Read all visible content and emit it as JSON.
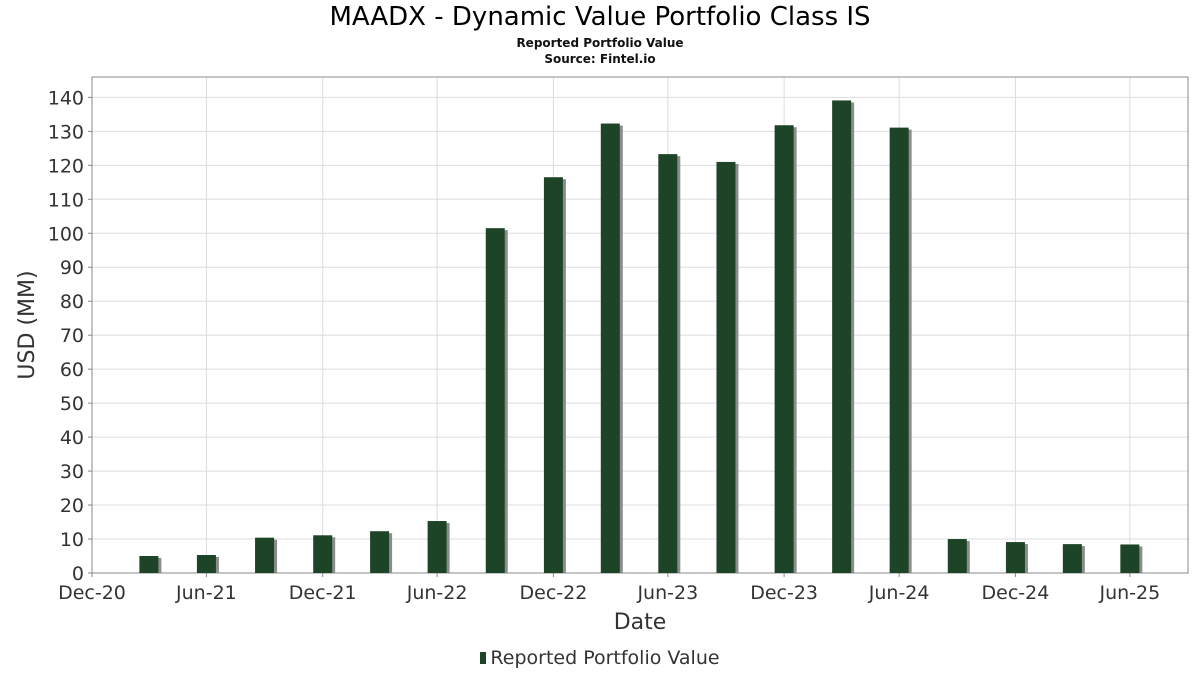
{
  "chart_data": {
    "type": "bar",
    "title": "MAADX - Dynamic Value Portfolio Class IS",
    "subtitle": "Reported Portfolio Value",
    "source": "Source: Fintel.io",
    "xlabel": "Date",
    "ylabel": "USD (MM)",
    "ylim": [
      0,
      146
    ],
    "yticks": [
      0,
      10,
      20,
      30,
      40,
      50,
      60,
      70,
      80,
      90,
      100,
      110,
      120,
      130,
      140
    ],
    "xlim": [
      "2020-12-31",
      "2025-09-30"
    ],
    "xticks": [
      {
        "date": "2020-12-31",
        "label": "Dec-20"
      },
      {
        "date": "2021-06-30",
        "label": "Jun-21"
      },
      {
        "date": "2021-12-31",
        "label": "Dec-21"
      },
      {
        "date": "2022-06-30",
        "label": "Jun-22"
      },
      {
        "date": "2022-12-31",
        "label": "Dec-22"
      },
      {
        "date": "2023-06-30",
        "label": "Jun-23"
      },
      {
        "date": "2023-12-31",
        "label": "Dec-23"
      },
      {
        "date": "2024-06-30",
        "label": "Jun-24"
      },
      {
        "date": "2024-12-31",
        "label": "Dec-24"
      },
      {
        "date": "2025-06-30",
        "label": "Jun-25"
      }
    ],
    "grid": true,
    "legend_position": "bottom-center",
    "series": [
      {
        "name": "Reported Portfolio Value",
        "color": "#1d4426",
        "x": [
          "2021-03-31",
          "2021-06-30",
          "2021-09-30",
          "2021-12-31",
          "2022-03-31",
          "2022-06-30",
          "2022-09-30",
          "2022-12-31",
          "2023-03-31",
          "2023-06-30",
          "2023-09-30",
          "2023-12-31",
          "2024-03-31",
          "2024-06-30",
          "2024-09-30",
          "2024-12-31",
          "2025-03-31",
          "2025-06-30"
        ],
        "values": [
          5.0,
          5.3,
          10.4,
          11.1,
          12.3,
          15.3,
          101.5,
          116.5,
          132.3,
          123.3,
          121.0,
          131.8,
          139.1,
          131.1,
          10.0,
          9.1,
          8.5,
          8.4
        ]
      }
    ]
  }
}
